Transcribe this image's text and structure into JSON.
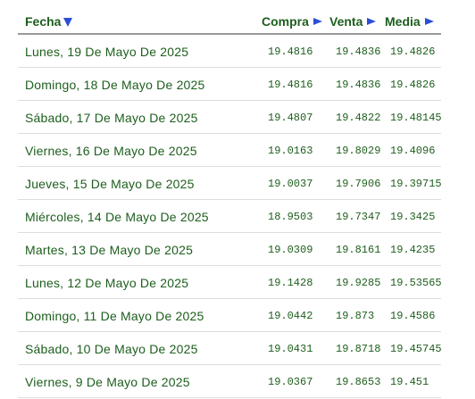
{
  "header": {
    "fecha": "Fecha",
    "compra": "Compra",
    "venta": "Venta",
    "media": "Media"
  },
  "colors": {
    "text": "#1d5e1d",
    "sort_arrow": "#2a4fd6"
  },
  "rows": [
    {
      "fecha": "Lunes, 19 De Mayo De 2025",
      "compra": "19.4816",
      "venta": "19.4836",
      "media": "19.4826"
    },
    {
      "fecha": "Domingo, 18 De Mayo De 2025",
      "compra": "19.4816",
      "venta": "19.4836",
      "media": "19.4826"
    },
    {
      "fecha": "Sábado, 17 De Mayo De 2025",
      "compra": "19.4807",
      "venta": "19.4822",
      "media": "19.48145"
    },
    {
      "fecha": "Viernes, 16 De Mayo De 2025",
      "compra": "19.0163",
      "venta": "19.8029",
      "media": "19.4096"
    },
    {
      "fecha": "Jueves, 15 De Mayo De 2025",
      "compra": "19.0037",
      "venta": "19.7906",
      "media": "19.39715"
    },
    {
      "fecha": "Miércoles, 14 De Mayo De 2025",
      "compra": "18.9503",
      "venta": "19.7347",
      "media": "19.3425"
    },
    {
      "fecha": "Martes, 13 De Mayo De 2025",
      "compra": "19.0309",
      "venta": "19.8161",
      "media": "19.4235"
    },
    {
      "fecha": "Lunes, 12 De Mayo De 2025",
      "compra": "19.1428",
      "venta": "19.9285",
      "media": "19.53565"
    },
    {
      "fecha": "Domingo, 11 De Mayo De 2025",
      "compra": "19.0442",
      "venta": "19.873",
      "media": "19.4586"
    },
    {
      "fecha": "Sábado, 10 De Mayo De 2025",
      "compra": "19.0431",
      "venta": "19.8718",
      "media": "19.45745"
    },
    {
      "fecha": "Viernes, 9 De Mayo De 2025",
      "compra": "19.0367",
      "venta": "19.8653",
      "media": "19.451"
    }
  ]
}
